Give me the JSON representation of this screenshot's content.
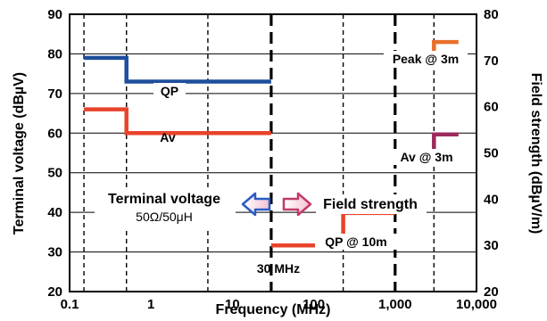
{
  "chart_data": {
    "type": "line",
    "xlabel": "Frequency (MHz)",
    "ylabel_left": "Terminal voltage (dBµV)",
    "ylabel_right": "Field strength  (dBµV/m)",
    "x_scale": "log",
    "xlim": [
      0.1,
      10000
    ],
    "ylim_left": [
      20,
      90
    ],
    "ylim_right": [
      20,
      80
    ],
    "x_ticks": [
      0.1,
      1,
      10,
      100,
      1000,
      10000
    ],
    "x_tick_labels": [
      "0.1",
      "1",
      "10",
      "100",
      "1,000",
      "10,000"
    ],
    "y_ticks_left": [
      20,
      30,
      40,
      50,
      60,
      70,
      80,
      90
    ],
    "y_ticks_right": [
      20,
      30,
      40,
      50,
      60,
      70,
      80
    ],
    "grid_y_left": [
      30,
      40,
      50,
      60,
      70,
      80
    ],
    "grid_x_minor": [
      0.15,
      0.5,
      5,
      230,
      3000
    ],
    "divider_x": [
      30,
      1000
    ],
    "series": [
      {
        "name": "QP",
        "axis": "left",
        "color": "#1f4e9c",
        "points": [
          [
            0.15,
            79
          ],
          [
            0.5,
            79
          ],
          [
            0.5,
            73
          ],
          [
            30,
            73
          ]
        ]
      },
      {
        "name": "Av",
        "axis": "left",
        "color": "#e8432b",
        "points": [
          [
            0.15,
            66
          ],
          [
            0.5,
            66
          ],
          [
            0.5,
            60
          ],
          [
            30,
            60
          ]
        ]
      },
      {
        "name": "QP @ 10m",
        "axis": "right",
        "color": "#e8432b",
        "points": [
          [
            30,
            30
          ],
          [
            230,
            30
          ],
          [
            230,
            37
          ],
          [
            1000,
            37
          ]
        ]
      },
      {
        "name": "Peak @ 3m",
        "axis": "right",
        "color": "#e8702b",
        "points": [
          [
            1000,
            70
          ],
          [
            3000,
            70
          ],
          [
            3000,
            74
          ],
          [
            6000,
            74
          ]
        ]
      },
      {
        "name": "Av @ 3m",
        "axis": "right",
        "color": "#9c2a5a",
        "points": [
          [
            1000,
            50
          ],
          [
            3000,
            50
          ],
          [
            3000,
            54
          ],
          [
            6000,
            54
          ]
        ]
      }
    ],
    "annotations": {
      "qp_label": "QP",
      "av_label": "Av",
      "peak3m_label": "Peak @ 3m",
      "av3m_label": "Av @ 3m",
      "qp10m_label": "QP @ 10m",
      "mhz30_label": "30 MHz",
      "terminal_voltage_label": "Terminal voltage",
      "impedance_label": "50Ω/50μH",
      "field_strength_label": "Field strength"
    },
    "arrow_colors": {
      "left_arrow": "#2a5cc4",
      "right_arrow": "#c23a6a"
    }
  }
}
